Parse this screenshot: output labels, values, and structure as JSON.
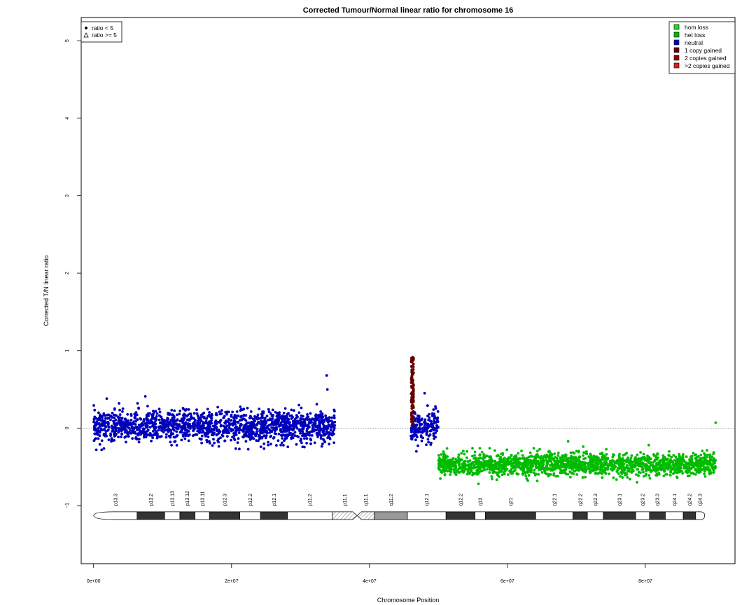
{
  "chart_data": {
    "type": "scatter",
    "title": "Corrected Tumour/Normal linear ratio for chromosome  16",
    "xlabel": "Chromosome Position",
    "ylabel": "Corrected T/N linear ratio",
    "xlim": [
      -1800000,
      93000000
    ],
    "ylim": [
      -1.75,
      5.3
    ],
    "x_ticks": [
      0,
      20000000,
      40000000,
      60000000,
      80000000
    ],
    "x_tick_labels": [
      "0e+00",
      "2e+07",
      "4e+07",
      "6e+07",
      "8e+07"
    ],
    "y_ticks": [
      -1,
      0,
      1,
      2,
      3,
      4,
      5
    ],
    "y_tick_labels": [
      "−1",
      "0",
      "1",
      "2",
      "3",
      "4",
      "5"
    ],
    "reference_line": {
      "y": 0,
      "style": "dotted",
      "color": "#808080"
    },
    "grid": false,
    "shape_legend": {
      "position": "top-left",
      "items": [
        {
          "symbol": "dot",
          "label": "ratio < 5"
        },
        {
          "symbol": "triangle",
          "label": "ratio >= 5"
        }
      ]
    },
    "color_legend": {
      "position": "top-right",
      "items": [
        {
          "label": "hom loss",
          "color": "#22dd22"
        },
        {
          "label": "het loss",
          "color": "#00bb00"
        },
        {
          "label": "neutral",
          "color": "#0000bb"
        },
        {
          "label": "1 copy gained",
          "color": "#660000"
        },
        {
          "label": "2 copies gained",
          "color": "#990000"
        },
        {
          ">": "",
          "label": ">2 copies gained",
          "color": "#dd2222"
        }
      ]
    },
    "series": [
      {
        "name": "neutral",
        "color": "#0000bb",
        "segments": [
          {
            "x_start": 0,
            "x_end": 35000000,
            "mean": 0.02,
            "sd": 0.1
          },
          {
            "x_start": 46000000,
            "x_end": 50000000,
            "mean": 0.02,
            "sd": 0.1
          }
        ],
        "outliers": [
          [
            1900000,
            0.38
          ],
          [
            7500000,
            0.41
          ],
          [
            33800000,
            0.68
          ],
          [
            33900000,
            0.5
          ],
          [
            46800000,
            -0.3
          ],
          [
            48000000,
            0.45
          ]
        ]
      },
      {
        "name": "1 copy gained",
        "color": "#660000",
        "segments": [
          {
            "x_start": 46050000,
            "x_end": 46400000,
            "min": 0.05,
            "max": 0.92
          }
        ]
      },
      {
        "name": "het loss",
        "color": "#00bb00",
        "segments": [
          {
            "x_start": 50000000,
            "x_end": 90300000,
            "mean": -0.47,
            "sd": 0.07
          }
        ],
        "outliers": [
          [
            68800000,
            -0.17
          ],
          [
            71000000,
            -0.24
          ],
          [
            56000000,
            -0.26
          ],
          [
            80500000,
            -0.22
          ],
          [
            55800000,
            -0.72
          ],
          [
            78800000,
            -0.7
          ],
          [
            90200000,
            0.07
          ]
        ]
      }
    ],
    "ideogram": {
      "y": -1.13,
      "centromere_x": 38300000,
      "bands": [
        {
          "name": "p13.3",
          "start": 0,
          "end": 6300000,
          "stain": "white"
        },
        {
          "name": "p13.2",
          "start": 6300000,
          "end": 10300000,
          "stain": "black"
        },
        {
          "name": "p13.13",
          "start": 10300000,
          "end": 12500000,
          "stain": "white"
        },
        {
          "name": "p13.12",
          "start": 12500000,
          "end": 14700000,
          "stain": "black"
        },
        {
          "name": "p13.11",
          "start": 14700000,
          "end": 16800000,
          "stain": "white"
        },
        {
          "name": "p12.3",
          "start": 16800000,
          "end": 21200000,
          "stain": "black"
        },
        {
          "name": "p12.2",
          "start": 21200000,
          "end": 24200000,
          "stain": "white"
        },
        {
          "name": "p12.1",
          "start": 24200000,
          "end": 28100000,
          "stain": "black"
        },
        {
          "name": "p11.2",
          "start": 28100000,
          "end": 34600000,
          "stain": "white"
        },
        {
          "name": "p11.1",
          "start": 34600000,
          "end": 38200000,
          "stain": "hatched"
        },
        {
          "name": "q11.1",
          "start": 38200000,
          "end": 40700000,
          "stain": "hatched"
        },
        {
          "name": "q11.2",
          "start": 40700000,
          "end": 45500000,
          "stain": "gray"
        },
        {
          "name": "q12.1",
          "start": 45500000,
          "end": 51100000,
          "stain": "white"
        },
        {
          "name": "q12.2",
          "start": 51100000,
          "end": 55300000,
          "stain": "black"
        },
        {
          "name": "q13",
          "start": 55300000,
          "end": 56800000,
          "stain": "white"
        },
        {
          "name": "q21",
          "start": 56800000,
          "end": 64100000,
          "stain": "black"
        },
        {
          "name": "q22.1",
          "start": 64100000,
          "end": 69500000,
          "stain": "white"
        },
        {
          "name": "q22.2",
          "start": 69500000,
          "end": 71600000,
          "stain": "black"
        },
        {
          "name": "q22.3",
          "start": 71600000,
          "end": 73900000,
          "stain": "white"
        },
        {
          "name": "q23.1",
          "start": 73900000,
          "end": 78600000,
          "stain": "black"
        },
        {
          "name": "q23.2",
          "start": 78600000,
          "end": 80600000,
          "stain": "white"
        },
        {
          "name": "q23.3",
          "start": 80600000,
          "end": 82900000,
          "stain": "black"
        },
        {
          "name": "q24.1",
          "start": 82900000,
          "end": 85500000,
          "stain": "white"
        },
        {
          "name": "q24.2",
          "start": 85500000,
          "end": 87300000,
          "stain": "black"
        },
        {
          "name": "q24.3",
          "start": 87300000,
          "end": 88600000,
          "stain": "white"
        }
      ]
    }
  }
}
